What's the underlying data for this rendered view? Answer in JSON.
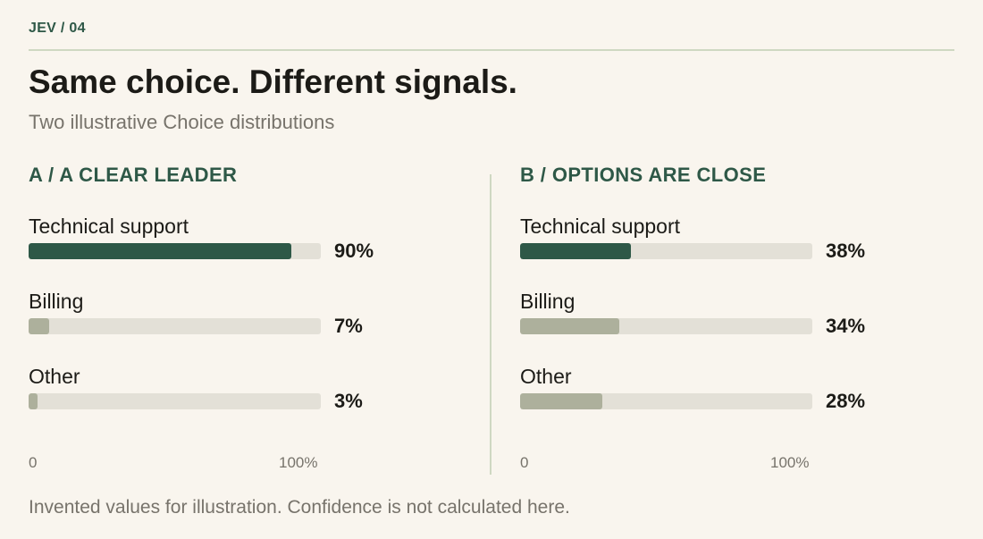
{
  "eyebrow": "JEV / 04",
  "title": "Same choice. Different signals.",
  "subtitle": "Two illustrative Choice distributions",
  "note": "Invented values for illustration. Confidence is not calculated here.",
  "colors": {
    "leader": "#2e5847",
    "other": "#adb09c",
    "track": "#e3e0d7"
  },
  "chart_data": [
    {
      "type": "bar",
      "orientation": "horizontal",
      "title": "A / A CLEAR LEADER",
      "categories": [
        "Technical support",
        "Billing",
        "Other"
      ],
      "values": [
        90,
        7,
        3
      ],
      "value_labels": [
        "90%",
        "7%",
        "3%"
      ],
      "xlim": [
        0,
        100
      ],
      "ticks": [
        "0",
        "100%"
      ]
    },
    {
      "type": "bar",
      "orientation": "horizontal",
      "title": "B / OPTIONS ARE CLOSE",
      "categories": [
        "Technical support",
        "Billing",
        "Other"
      ],
      "values": [
        38,
        34,
        28
      ],
      "value_labels": [
        "38%",
        "34%",
        "28%"
      ],
      "xlim": [
        0,
        100
      ],
      "ticks": [
        "0",
        "100%"
      ]
    }
  ]
}
